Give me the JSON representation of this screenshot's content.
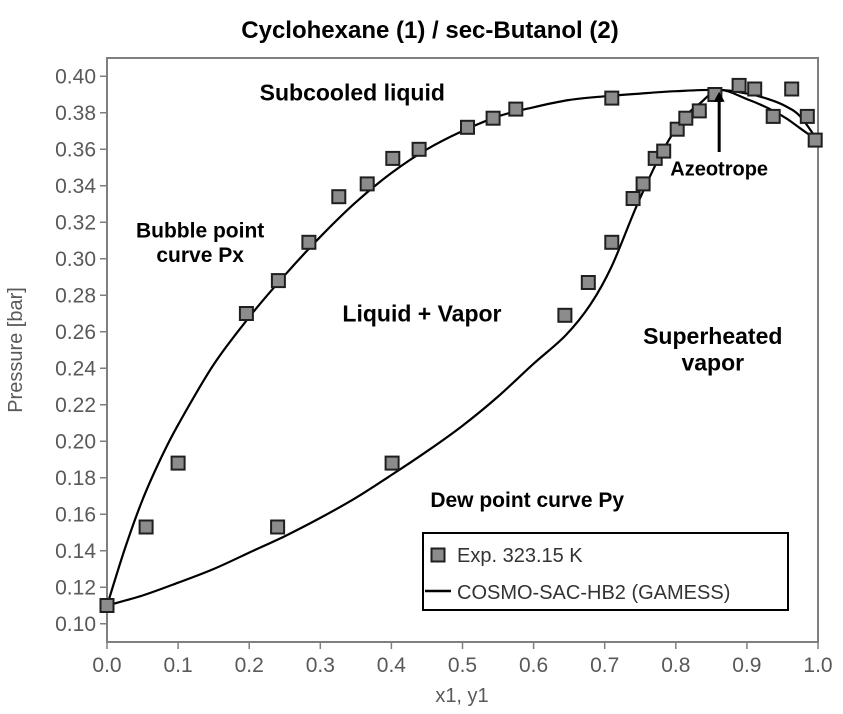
{
  "chart_data": {
    "type": "line+scatter",
    "title": "Cyclohexane (1) / sec-Butanol (2)",
    "xlabel": "x1, y1",
    "ylabel": "Pressure [bar]",
    "xlim": [
      0.0,
      1.0
    ],
    "ylim": [
      0.09,
      0.41
    ],
    "grid": false,
    "legend_position": "inside lower right",
    "xticks": [
      0.0,
      0.1,
      0.2,
      0.3,
      0.4,
      0.5,
      0.6,
      0.7,
      0.8,
      0.9,
      1.0
    ],
    "xtick_labels": [
      "0.0",
      "0.1",
      "0.2",
      "0.3",
      "0.4",
      "0.5",
      "0.6",
      "0.7",
      "0.8",
      "0.9",
      "1.0"
    ],
    "yticks": [
      0.1,
      0.12,
      0.14,
      0.16,
      0.18,
      0.2,
      0.22,
      0.24,
      0.26,
      0.28,
      0.3,
      0.32,
      0.34,
      0.36,
      0.38,
      0.4
    ],
    "ytick_labels": [
      "0.10",
      "0.12",
      "0.14",
      "0.16",
      "0.18",
      "0.20",
      "0.22",
      "0.24",
      "0.26",
      "0.28",
      "0.30",
      "0.32",
      "0.34",
      "0.36",
      "0.38",
      "0.40"
    ],
    "colors": {
      "curve": "#000000",
      "marker_fill": "#8c8c8c",
      "marker_edge": "#1f1f1f",
      "axis": "#7f7f7f",
      "tick_text": "#595959",
      "annotation": "#000000",
      "legend_border": "#000000",
      "legend_text": "#333333"
    },
    "legend": {
      "entries": [
        {
          "sample": "marker",
          "label": "Exp. 323.15 K"
        },
        {
          "sample": "line",
          "label": "COSMO-SAC-HB2 (GAMESS)"
        }
      ]
    },
    "series": [
      {
        "name": "exp-bubble-points-Px",
        "type": "scatter",
        "marker": "square",
        "points": [
          [
            0.0,
            0.11
          ],
          [
            0.055,
            0.153
          ],
          [
            0.1,
            0.188
          ],
          [
            0.196,
            0.27
          ],
          [
            0.241,
            0.288
          ],
          [
            0.284,
            0.309
          ],
          [
            0.326,
            0.334
          ],
          [
            0.366,
            0.341
          ],
          [
            0.402,
            0.355
          ],
          [
            0.439,
            0.36
          ],
          [
            0.507,
            0.372
          ],
          [
            0.543,
            0.377
          ],
          [
            0.575,
            0.382
          ],
          [
            0.71,
            0.388
          ],
          [
            0.889,
            0.395
          ],
          [
            0.911,
            0.393
          ],
          [
            0.963,
            0.393
          ]
        ]
      },
      {
        "name": "exp-dew-points-Py",
        "type": "scatter",
        "marker": "square",
        "points": [
          [
            0.24,
            0.153
          ],
          [
            0.401,
            0.188
          ],
          [
            0.644,
            0.269
          ],
          [
            0.677,
            0.287
          ],
          [
            0.71,
            0.309
          ],
          [
            0.74,
            0.333
          ],
          [
            0.754,
            0.341
          ],
          [
            0.771,
            0.355
          ],
          [
            0.783,
            0.359
          ],
          [
            0.802,
            0.371
          ],
          [
            0.814,
            0.377
          ],
          [
            0.833,
            0.381
          ],
          [
            0.855,
            0.39
          ],
          [
            0.937,
            0.378
          ],
          [
            0.985,
            0.378
          ],
          [
            0.996,
            0.365
          ]
        ]
      },
      {
        "name": "model-bubble-curve-Px",
        "type": "line",
        "points": [
          [
            0.0,
            0.11
          ],
          [
            0.025,
            0.141
          ],
          [
            0.05,
            0.168
          ],
          [
            0.075,
            0.19
          ],
          [
            0.1,
            0.209
          ],
          [
            0.15,
            0.242
          ],
          [
            0.2,
            0.268
          ],
          [
            0.25,
            0.291
          ],
          [
            0.3,
            0.312
          ],
          [
            0.35,
            0.331
          ],
          [
            0.4,
            0.347
          ],
          [
            0.45,
            0.36
          ],
          [
            0.5,
            0.37
          ],
          [
            0.55,
            0.378
          ],
          [
            0.6,
            0.383
          ],
          [
            0.65,
            0.387
          ],
          [
            0.7,
            0.389
          ],
          [
            0.75,
            0.3905
          ],
          [
            0.8,
            0.3918
          ],
          [
            0.861,
            0.3925
          ],
          [
            0.9,
            0.3905
          ],
          [
            0.93,
            0.3875
          ],
          [
            0.955,
            0.3835
          ],
          [
            0.975,
            0.378
          ],
          [
            1.0,
            0.3645
          ]
        ]
      },
      {
        "name": "model-dew-curve-Py",
        "type": "line",
        "points": [
          [
            0.0,
            0.11
          ],
          [
            0.05,
            0.1155
          ],
          [
            0.1,
            0.1225
          ],
          [
            0.15,
            0.13
          ],
          [
            0.2,
            0.139
          ],
          [
            0.25,
            0.148
          ],
          [
            0.3,
            0.158
          ],
          [
            0.35,
            0.169
          ],
          [
            0.4,
            0.1815
          ],
          [
            0.45,
            0.1945
          ],
          [
            0.5,
            0.2085
          ],
          [
            0.55,
            0.2245
          ],
          [
            0.6,
            0.2425
          ],
          [
            0.645,
            0.258
          ],
          [
            0.68,
            0.275
          ],
          [
            0.71,
            0.296
          ],
          [
            0.745,
            0.329
          ],
          [
            0.78,
            0.358
          ],
          [
            0.81,
            0.3765
          ],
          [
            0.835,
            0.3855
          ],
          [
            0.861,
            0.3925
          ],
          [
            0.9,
            0.3875
          ],
          [
            0.93,
            0.3825
          ],
          [
            0.955,
            0.377
          ],
          [
            0.975,
            0.3715
          ],
          [
            1.0,
            0.3645
          ]
        ]
      }
    ],
    "annotations": [
      {
        "name": "subcooled-liquid",
        "lines": [
          "Subcooled liquid"
        ],
        "x": 0.345,
        "y": 0.391,
        "size": 23
      },
      {
        "name": "bubble-point-curve",
        "lines": [
          "Bubble point",
          "curve Px"
        ],
        "x": 0.131,
        "y": 0.309,
        "size": 21
      },
      {
        "name": "liquid-plus-vapor",
        "lines": [
          "Liquid + Vapor"
        ],
        "x": 0.443,
        "y": 0.27,
        "size": 23
      },
      {
        "name": "superheated-vapor",
        "lines": [
          "Superheated",
          "vapor"
        ],
        "x": 0.852,
        "y": 0.2505,
        "size": 23
      },
      {
        "name": "dew-point-curve",
        "lines": [
          "Dew point curve Py"
        ],
        "x": 0.591,
        "y": 0.168,
        "size": 21
      },
      {
        "name": "azeotrope",
        "lines": [
          "Azeotrope"
        ],
        "x": 0.861,
        "y": 0.3495,
        "size": 20
      }
    ],
    "azeotrope_arrow": {
      "x": 0.861,
      "from_p": 0.3585,
      "to_p": 0.3915
    }
  }
}
